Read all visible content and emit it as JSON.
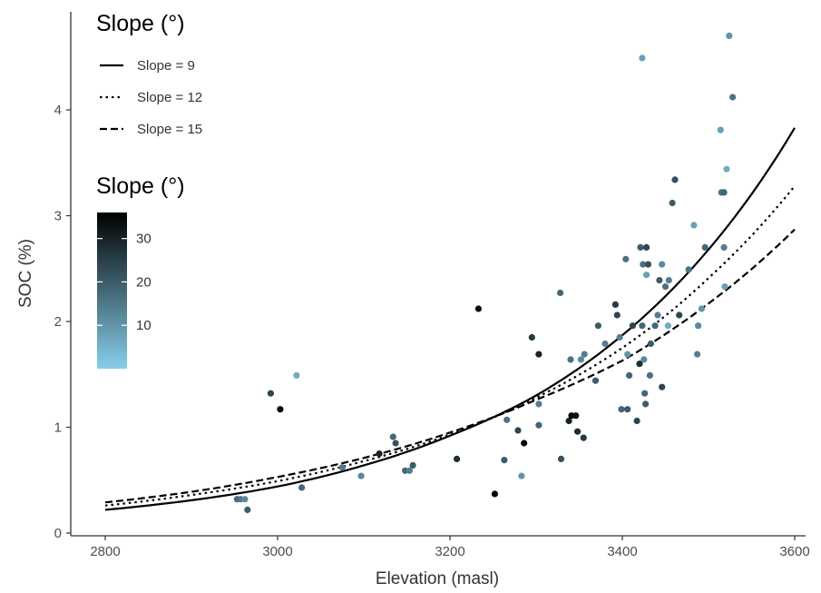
{
  "chart_data": {
    "type": "scatter",
    "xlabel": "Elevation (masl)",
    "ylabel": "SOC (%)",
    "xlim": [
      2760,
      3610
    ],
    "ylim": [
      0,
      4.75
    ],
    "x_ticks": [
      2800,
      3000,
      3200,
      3400,
      3600
    ],
    "y_ticks": [
      0,
      1,
      2,
      3,
      4
    ],
    "grid": false,
    "legends": {
      "linetype_title": "Slope (°)",
      "color_title": "Slope (°)",
      "colorbar_range": [
        0,
        36
      ],
      "colorbar_ticks": [
        10,
        20,
        30
      ],
      "colorbar_colors": [
        "#87ceeb",
        "#000000"
      ],
      "placement": "top-left"
    },
    "fitted_curves": [
      {
        "name": "Slope = 9",
        "style": "solid",
        "x": [
          2800,
          2900,
          3000,
          3100,
          3200,
          3300,
          3400,
          3500,
          3600
        ],
        "y": [
          0.22,
          0.31,
          0.44,
          0.64,
          0.92,
          1.3,
          1.87,
          2.68,
          3.83
        ]
      },
      {
        "name": "Slope = 12",
        "style": "dotted",
        "x": [
          2800,
          2900,
          3000,
          3100,
          3200,
          3300,
          3400,
          3500,
          3600
        ],
        "y": [
          0.26,
          0.36,
          0.49,
          0.68,
          0.93,
          1.28,
          1.75,
          2.41,
          3.28
        ]
      },
      {
        "name": "Slope = 15",
        "style": "dashed",
        "x": [
          2800,
          2900,
          3000,
          3100,
          3200,
          3300,
          3400,
          3500,
          3600
        ],
        "y": [
          0.29,
          0.39,
          0.53,
          0.71,
          0.95,
          1.26,
          1.63,
          2.17,
          2.87
        ]
      }
    ],
    "points": [
      {
        "x": 2953,
        "y": 0.32,
        "slope": 18
      },
      {
        "x": 2957,
        "y": 0.32,
        "slope": 15
      },
      {
        "x": 2962,
        "y": 0.32,
        "slope": 12
      },
      {
        "x": 2965,
        "y": 0.22,
        "slope": 20
      },
      {
        "x": 2992,
        "y": 1.32,
        "slope": 24
      },
      {
        "x": 3003,
        "y": 1.17,
        "slope": 34
      },
      {
        "x": 3022,
        "y": 1.49,
        "slope": 6
      },
      {
        "x": 3028,
        "y": 0.43,
        "slope": 18
      },
      {
        "x": 3075,
        "y": 0.62,
        "slope": 15
      },
      {
        "x": 3097,
        "y": 0.54,
        "slope": 12
      },
      {
        "x": 3118,
        "y": 0.75,
        "slope": 30
      },
      {
        "x": 3134,
        "y": 0.91,
        "slope": 18
      },
      {
        "x": 3137,
        "y": 0.85,
        "slope": 22
      },
      {
        "x": 3148,
        "y": 0.59,
        "slope": 18
      },
      {
        "x": 3153,
        "y": 0.59,
        "slope": 14
      },
      {
        "x": 3157,
        "y": 0.64,
        "slope": 20
      },
      {
        "x": 3208,
        "y": 0.7,
        "slope": 28
      },
      {
        "x": 3233,
        "y": 2.12,
        "slope": 34
      },
      {
        "x": 3252,
        "y": 0.37,
        "slope": 35
      },
      {
        "x": 3263,
        "y": 0.69,
        "slope": 20
      },
      {
        "x": 3266,
        "y": 1.07,
        "slope": 16
      },
      {
        "x": 3279,
        "y": 0.97,
        "slope": 24
      },
      {
        "x": 3283,
        "y": 0.54,
        "slope": 10
      },
      {
        "x": 3286,
        "y": 0.85,
        "slope": 34
      },
      {
        "x": 3295,
        "y": 1.85,
        "slope": 26
      },
      {
        "x": 3303,
        "y": 1.69,
        "slope": 30
      },
      {
        "x": 3303,
        "y": 1.02,
        "slope": 18
      },
      {
        "x": 3303,
        "y": 1.22,
        "slope": 14
      },
      {
        "x": 3328,
        "y": 2.27,
        "slope": 18
      },
      {
        "x": 3329,
        "y": 0.7,
        "slope": 22
      },
      {
        "x": 3338,
        "y": 1.06,
        "slope": 30
      },
      {
        "x": 3341,
        "y": 1.11,
        "slope": 34
      },
      {
        "x": 3346,
        "y": 1.11,
        "slope": 33
      },
      {
        "x": 3348,
        "y": 0.96,
        "slope": 28
      },
      {
        "x": 3340,
        "y": 1.64,
        "slope": 16
      },
      {
        "x": 3352,
        "y": 1.64,
        "slope": 12
      },
      {
        "x": 3356,
        "y": 1.69,
        "slope": 14
      },
      {
        "x": 3355,
        "y": 0.9,
        "slope": 26
      },
      {
        "x": 3369,
        "y": 1.44,
        "slope": 20
      },
      {
        "x": 3372,
        "y": 1.96,
        "slope": 20
      },
      {
        "x": 3380,
        "y": 1.79,
        "slope": 14
      },
      {
        "x": 3392,
        "y": 2.16,
        "slope": 26
      },
      {
        "x": 3394,
        "y": 2.06,
        "slope": 24
      },
      {
        "x": 3397,
        "y": 1.85,
        "slope": 14
      },
      {
        "x": 3399,
        "y": 1.17,
        "slope": 18
      },
      {
        "x": 3404,
        "y": 2.59,
        "slope": 16
      },
      {
        "x": 3406,
        "y": 1.17,
        "slope": 20
      },
      {
        "x": 3406,
        "y": 1.69,
        "slope": 10
      },
      {
        "x": 3408,
        "y": 1.49,
        "slope": 18
      },
      {
        "x": 3412,
        "y": 1.96,
        "slope": 24
      },
      {
        "x": 3417,
        "y": 1.06,
        "slope": 24
      },
      {
        "x": 3420,
        "y": 1.6,
        "slope": 28
      },
      {
        "x": 3421,
        "y": 2.7,
        "slope": 20
      },
      {
        "x": 3423,
        "y": 4.49,
        "slope": 8
      },
      {
        "x": 3423,
        "y": 1.96,
        "slope": 18
      },
      {
        "x": 3424,
        "y": 2.54,
        "slope": 16
      },
      {
        "x": 3425,
        "y": 1.64,
        "slope": 12
      },
      {
        "x": 3426,
        "y": 1.32,
        "slope": 18
      },
      {
        "x": 3427,
        "y": 1.22,
        "slope": 20
      },
      {
        "x": 3428,
        "y": 2.44,
        "slope": 8
      },
      {
        "x": 3428,
        "y": 2.7,
        "slope": 24
      },
      {
        "x": 3430,
        "y": 2.54,
        "slope": 22
      },
      {
        "x": 3432,
        "y": 1.49,
        "slope": 16
      },
      {
        "x": 3433,
        "y": 1.79,
        "slope": 20
      },
      {
        "x": 3438,
        "y": 1.96,
        "slope": 18
      },
      {
        "x": 3441,
        "y": 2.06,
        "slope": 14
      },
      {
        "x": 3443,
        "y": 2.39,
        "slope": 20
      },
      {
        "x": 3446,
        "y": 1.38,
        "slope": 24
      },
      {
        "x": 3446,
        "y": 2.54,
        "slope": 12
      },
      {
        "x": 3450,
        "y": 2.33,
        "slope": 16
      },
      {
        "x": 3453,
        "y": 1.96,
        "slope": 6
      },
      {
        "x": 3454,
        "y": 2.39,
        "slope": 14
      },
      {
        "x": 3458,
        "y": 3.12,
        "slope": 20
      },
      {
        "x": 3461,
        "y": 3.34,
        "slope": 22
      },
      {
        "x": 3466,
        "y": 2.06,
        "slope": 24
      },
      {
        "x": 3477,
        "y": 2.49,
        "slope": 16
      },
      {
        "x": 3483,
        "y": 2.91,
        "slope": 8
      },
      {
        "x": 3487,
        "y": 1.69,
        "slope": 14
      },
      {
        "x": 3488,
        "y": 1.96,
        "slope": 12
      },
      {
        "x": 3492,
        "y": 2.12,
        "slope": 10
      },
      {
        "x": 3496,
        "y": 2.7,
        "slope": 18
      },
      {
        "x": 3514,
        "y": 3.81,
        "slope": 8
      },
      {
        "x": 3515,
        "y": 3.22,
        "slope": 16
      },
      {
        "x": 3518,
        "y": 3.22,
        "slope": 18
      },
      {
        "x": 3518,
        "y": 2.7,
        "slope": 14
      },
      {
        "x": 3519,
        "y": 2.33,
        "slope": 8
      },
      {
        "x": 3521,
        "y": 3.44,
        "slope": 6
      },
      {
        "x": 3524,
        "y": 4.7,
        "slope": 10
      },
      {
        "x": 3528,
        "y": 4.12,
        "slope": 16
      }
    ]
  }
}
